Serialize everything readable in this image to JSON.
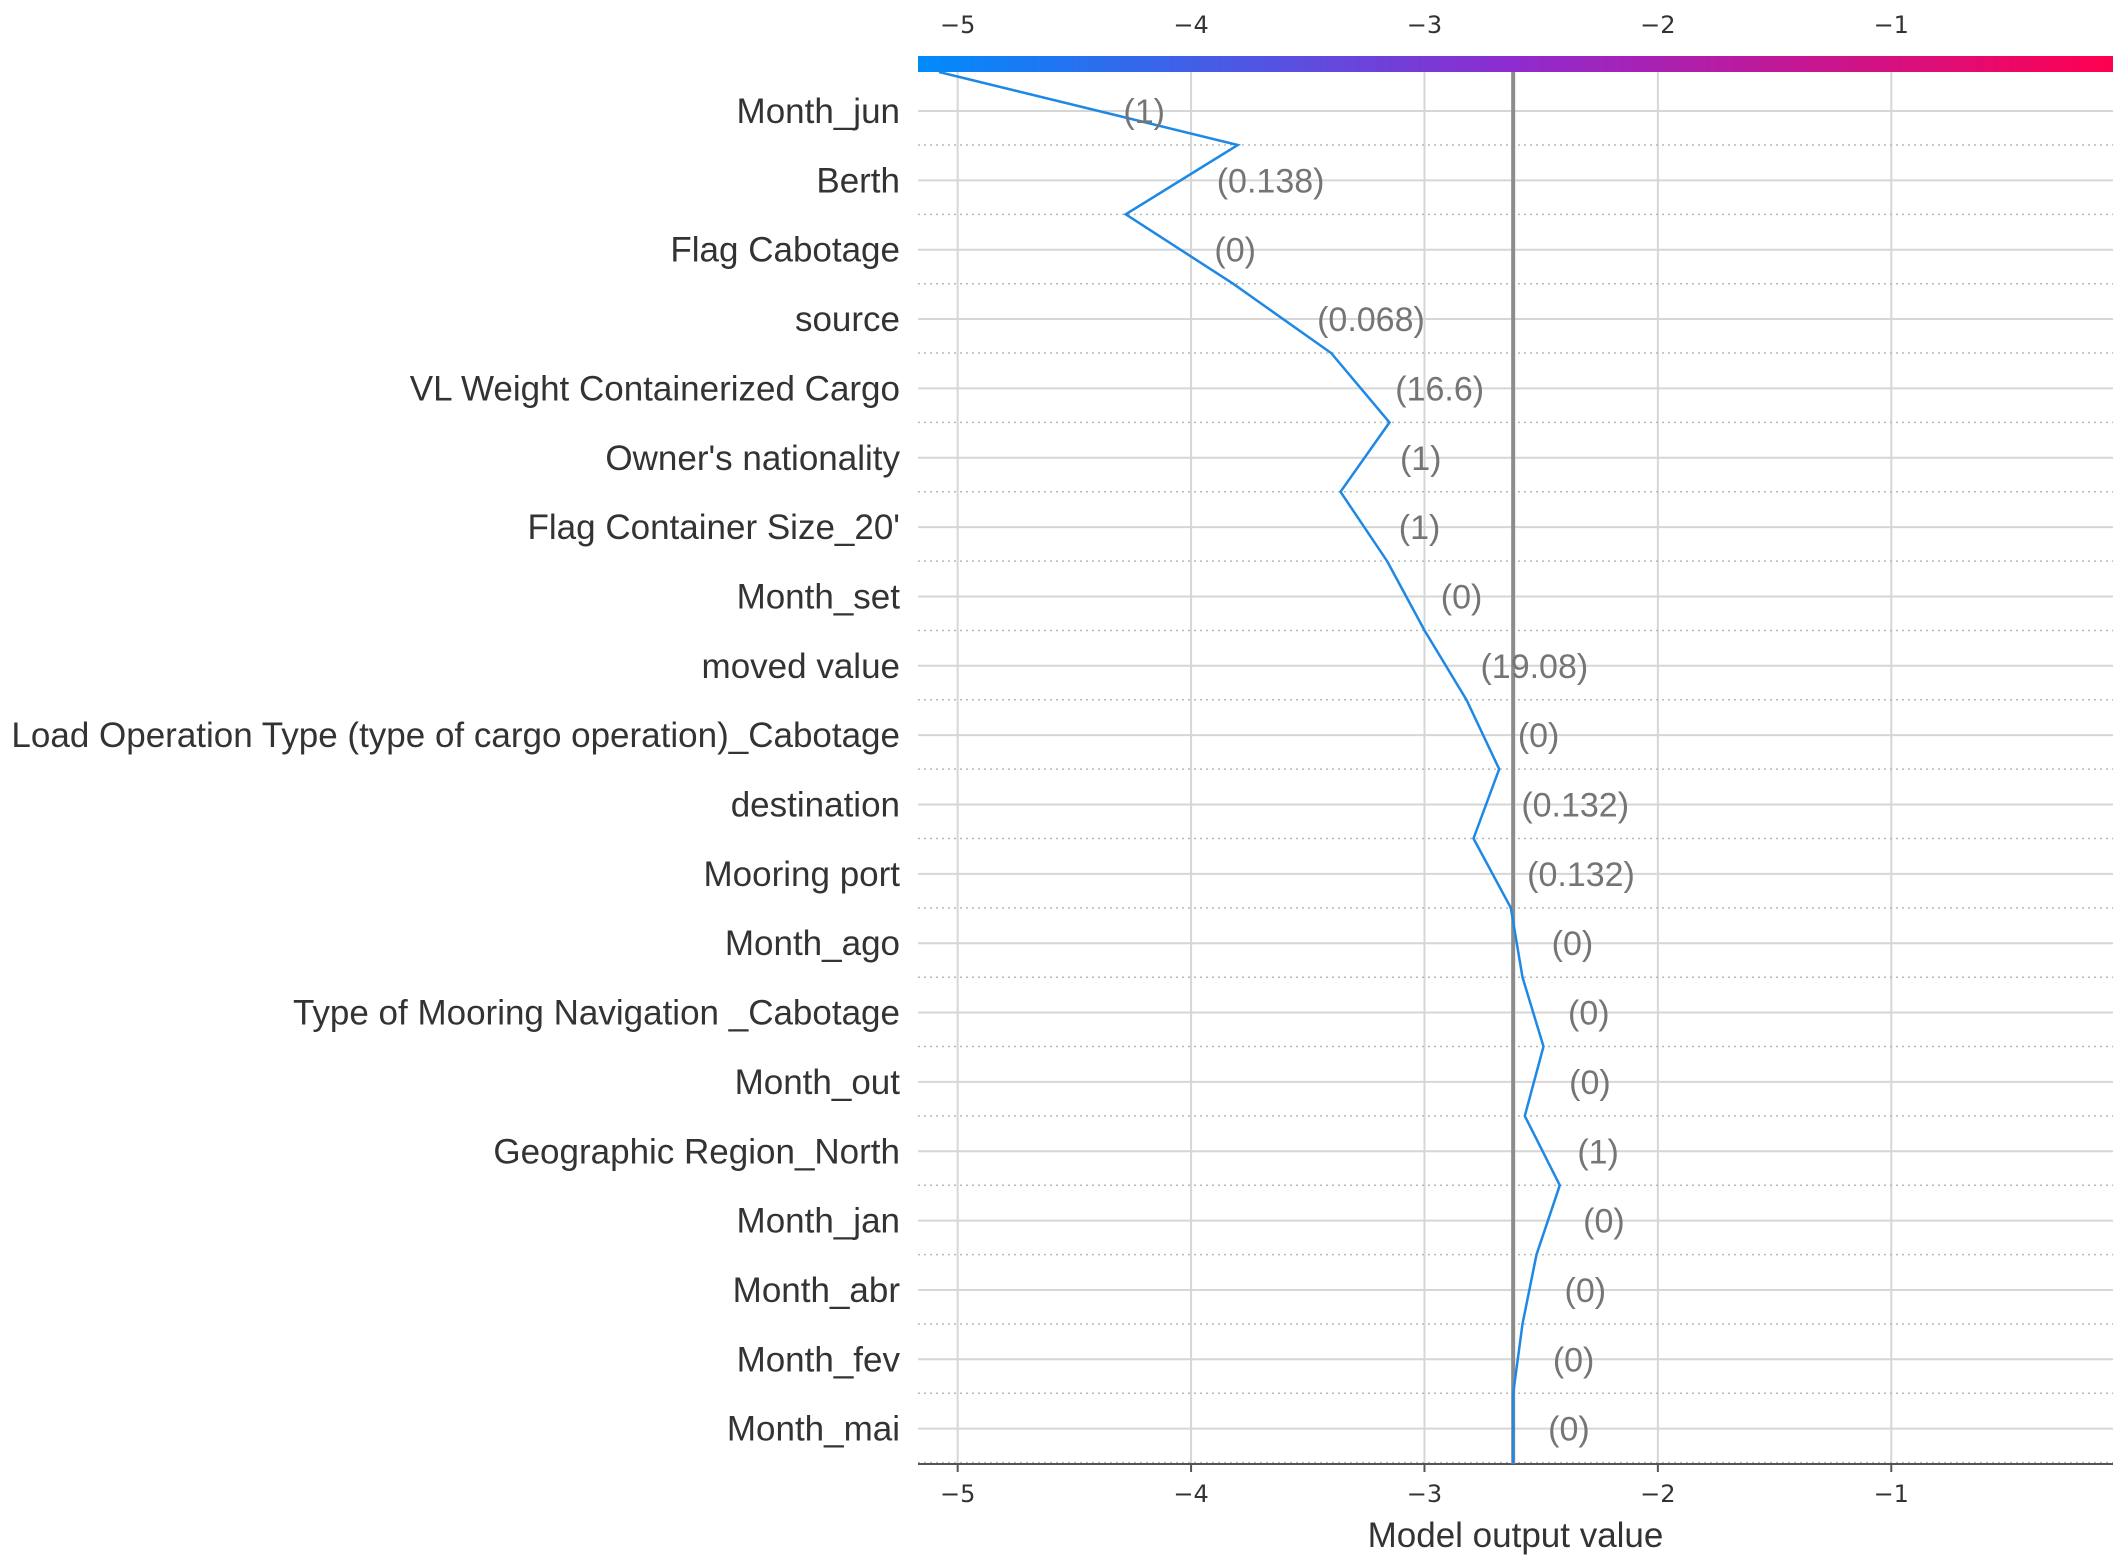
{
  "chart_data": {
    "type": "line",
    "subtype": "shap-decision-plot",
    "xlabel": "Model output value",
    "xlim": [
      -5.17,
      -0.05
    ],
    "x_ticks": [
      -5,
      -4,
      -3,
      -2,
      -1
    ],
    "x_tick_labels": [
      "−5",
      "−4",
      "−3",
      "−2",
      "−1"
    ],
    "base_value": -2.62,
    "colorbar": {
      "from": "#008bfb",
      "mid": "#8f2bcf",
      "to": "#ff0051",
      "position": "top"
    },
    "line_color": "#1e88e5",
    "grid": true,
    "features": [
      {
        "name": "Month_jun",
        "value_label": "(1)"
      },
      {
        "name": "Berth",
        "value_label": "(0.138)"
      },
      {
        "name": "Flag Cabotage",
        "value_label": "(0)"
      },
      {
        "name": "source",
        "value_label": "(0.068)"
      },
      {
        "name": "VL Weight Containerized Cargo",
        "value_label": "(16.6)"
      },
      {
        "name": "Owner's nationality",
        "value_label": "(1)"
      },
      {
        "name": "Flag Container Size_20'",
        "value_label": "(1)"
      },
      {
        "name": "Month_set",
        "value_label": "(0)"
      },
      {
        "name": "moved value",
        "value_label": "(19.08)"
      },
      {
        "name": "Load Operation Type (type of cargo operation)_Cabotage",
        "value_label": "(0)"
      },
      {
        "name": "destination",
        "value_label": "(0.132)"
      },
      {
        "name": "Mooring port",
        "value_label": "(0.132)"
      },
      {
        "name": "Month_ago",
        "value_label": "(0)"
      },
      {
        "name": "Type of Mooring Navigation _Cabotage",
        "value_label": "(0)"
      },
      {
        "name": "Month_out",
        "value_label": "(0)"
      },
      {
        "name": "Geographic Region_North",
        "value_label": "(1)"
      },
      {
        "name": "Month_jan",
        "value_label": "(0)"
      },
      {
        "name": "Month_abr",
        "value_label": "(0)"
      },
      {
        "name": "Month_fev",
        "value_label": "(0)"
      },
      {
        "name": "Month_mai",
        "value_label": "(0)"
      }
    ],
    "path_values": [
      -5.08,
      -3.8,
      -4.28,
      -3.82,
      -3.4,
      -3.15,
      -3.36,
      -3.16,
      -3.0,
      -2.82,
      -2.68,
      -2.79,
      -2.63,
      -2.58,
      -2.49,
      -2.57,
      -2.42,
      -2.52,
      -2.58,
      -2.62,
      -2.62
    ]
  }
}
